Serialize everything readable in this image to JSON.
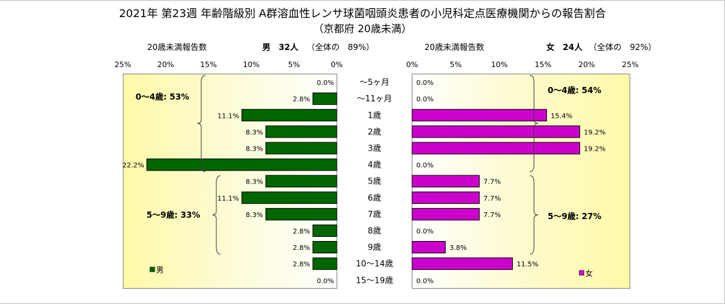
{
  "title": "2021年 第23週 年齢階級別 A群溶血性レンサ球菌咽頭炎患者の小児科定点医療機関からの報告割合",
  "subtitle": "（京都府 20歳未満）",
  "chart_data": {
    "type": "bar",
    "categories": [
      "〜5ヶ月",
      "〜11ヶ月",
      "1歳",
      "2歳",
      "3歳",
      "4歳",
      "5歳",
      "6歳",
      "7歳",
      "8歳",
      "9歳",
      "10〜14歳",
      "15〜19歳"
    ],
    "series": [
      {
        "name": "男",
        "values": [
          0.0,
          2.8,
          11.1,
          8.3,
          8.3,
          22.2,
          8.3,
          11.1,
          8.3,
          2.8,
          2.8,
          2.8,
          0.0
        ],
        "color": "#006600"
      },
      {
        "name": "女",
        "values": [
          0.0,
          0.0,
          15.4,
          19.2,
          19.2,
          0.0,
          7.7,
          7.7,
          7.7,
          0.0,
          3.8,
          11.5,
          0.0
        ],
        "color": "#cc00cc"
      }
    ],
    "value_labels": {
      "男": [
        "0.0%",
        "2.8%",
        "11.1%",
        "8.3%",
        "8.3%",
        "22.2%",
        "8.3%",
        "11.1%",
        "8.3%",
        "2.8%",
        "2.8%",
        "2.8%",
        "0.0%"
      ],
      "女": [
        "0.0%",
        "0.0%",
        "15.4%",
        "19.2%",
        "19.2%",
        "0.0%",
        "7.7%",
        "7.7%",
        "7.7%",
        "0.0%",
        "3.8%",
        "11.5%",
        "0.0%"
      ]
    },
    "xlim": [
      0,
      25
    ],
    "ticks": [
      "25%",
      "20%",
      "15%",
      "10%",
      "5%",
      "0%"
    ],
    "ticks_right": [
      "0%",
      "5%",
      "10%",
      "15%",
      "20%",
      "25%"
    ],
    "male_header": {
      "label": "20歳未満報告数",
      "count": "男　32人",
      "share": "（全体の　89%）"
    },
    "female_header": {
      "label": "20歳未満報告数",
      "count": "女　24人",
      "share": "（全体の　92%）"
    },
    "male_annotations": [
      {
        "text": "0〜4歳: 53%",
        "from": 0,
        "to": 5
      },
      {
        "text": "5〜9歳: 33%",
        "from": 6,
        "to": 10
      }
    ],
    "female_annotations": [
      {
        "text": "0〜4歳: 54%",
        "from": 0,
        "to": 5
      },
      {
        "text": "5〜9歳: 27%",
        "from": 6,
        "to": 10
      }
    ],
    "legend_male": "男",
    "legend_female": "女"
  }
}
